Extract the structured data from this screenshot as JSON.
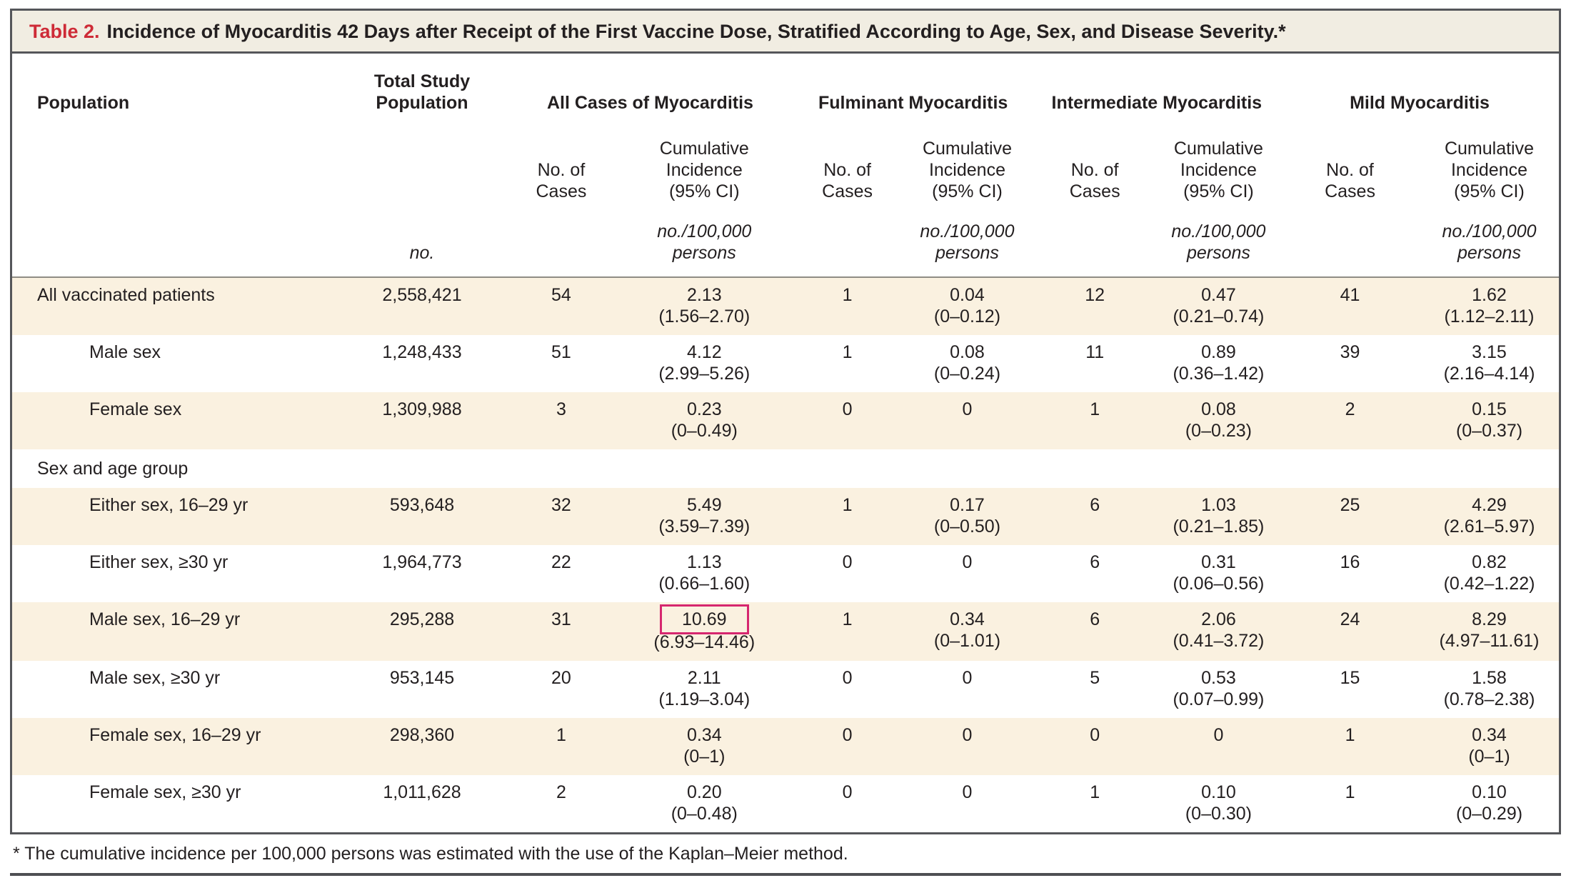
{
  "title": {
    "label": "Table 2.",
    "text": "Incidence of Myocarditis 42 Days after Receipt of the First Vaccine Dose, Stratified According to Age, Sex, and Disease Severity.*"
  },
  "table": {
    "header": {
      "population": "Population",
      "total_study_population": "Total Study Population",
      "groups": [
        "All Cases of Myocarditis",
        "Fulminant Myocarditis",
        "Intermediate Myocarditis",
        "Mild Myocarditis"
      ],
      "no_of_cases": "No. of Cases",
      "cumulative_incidence": "Cumulative Incidence (95% CI)",
      "unit_total": "no.",
      "unit_incidence": "no./100,000 persons"
    },
    "rows": [
      {
        "label": "All vaccinated patients",
        "indent": false,
        "shaded": true,
        "total": "2,558,421",
        "groups": [
          {
            "n": "54",
            "value": "2.13",
            "ci": "(1.56–2.70)"
          },
          {
            "n": "1",
            "value": "0.04",
            "ci": "(0–0.12)"
          },
          {
            "n": "12",
            "value": "0.47",
            "ci": "(0.21–0.74)"
          },
          {
            "n": "41",
            "value": "1.62",
            "ci": "(1.12–2.11)"
          }
        ]
      },
      {
        "label": "Male sex",
        "indent": true,
        "shaded": false,
        "total": "1,248,433",
        "groups": [
          {
            "n": "51",
            "value": "4.12",
            "ci": "(2.99–5.26)"
          },
          {
            "n": "1",
            "value": "0.08",
            "ci": "(0–0.24)"
          },
          {
            "n": "11",
            "value": "0.89",
            "ci": "(0.36–1.42)"
          },
          {
            "n": "39",
            "value": "3.15",
            "ci": "(2.16–4.14)"
          }
        ]
      },
      {
        "label": "Female sex",
        "indent": true,
        "shaded": true,
        "total": "1,309,988",
        "groups": [
          {
            "n": "3",
            "value": "0.23",
            "ci": "(0–0.49)"
          },
          {
            "n": "0",
            "value": "0",
            "ci": ""
          },
          {
            "n": "1",
            "value": "0.08",
            "ci": "(0–0.23)"
          },
          {
            "n": "2",
            "value": "0.15",
            "ci": "(0–0.37)"
          }
        ]
      },
      {
        "label": "Sex and age group",
        "section": true,
        "shaded": false
      },
      {
        "label": "Either sex, 16–29 yr",
        "indent": true,
        "shaded": true,
        "total": "593,648",
        "groups": [
          {
            "n": "32",
            "value": "5.49",
            "ci": "(3.59–7.39)"
          },
          {
            "n": "1",
            "value": "0.17",
            "ci": "(0–0.50)"
          },
          {
            "n": "6",
            "value": "1.03",
            "ci": "(0.21–1.85)"
          },
          {
            "n": "25",
            "value": "4.29",
            "ci": "(2.61–5.97)"
          }
        ]
      },
      {
        "label": "Either sex, ≥30 yr",
        "indent": true,
        "shaded": false,
        "total": "1,964,773",
        "groups": [
          {
            "n": "22",
            "value": "1.13",
            "ci": "(0.66–1.60)"
          },
          {
            "n": "0",
            "value": "0",
            "ci": ""
          },
          {
            "n": "6",
            "value": "0.31",
            "ci": "(0.06–0.56)"
          },
          {
            "n": "16",
            "value": "0.82",
            "ci": "(0.42–1.22)"
          }
        ]
      },
      {
        "label": "Male sex, 16–29 yr",
        "indent": true,
        "shaded": true,
        "total": "295,288",
        "groups": [
          {
            "n": "31",
            "value": "10.69",
            "ci": "(6.93–14.46)",
            "highlight": true
          },
          {
            "n": "1",
            "value": "0.34",
            "ci": "(0–1.01)"
          },
          {
            "n": "6",
            "value": "2.06",
            "ci": "(0.41–3.72)"
          },
          {
            "n": "24",
            "value": "8.29",
            "ci": "(4.97–11.61)"
          }
        ]
      },
      {
        "label": "Male sex, ≥30 yr",
        "indent": true,
        "shaded": false,
        "total": "953,145",
        "groups": [
          {
            "n": "20",
            "value": "2.11",
            "ci": "(1.19–3.04)"
          },
          {
            "n": "0",
            "value": "0",
            "ci": ""
          },
          {
            "n": "5",
            "value": "0.53",
            "ci": "(0.07–0.99)"
          },
          {
            "n": "15",
            "value": "1.58",
            "ci": "(0.78–2.38)"
          }
        ]
      },
      {
        "label": "Female sex, 16–29 yr",
        "indent": true,
        "shaded": true,
        "total": "298,360",
        "groups": [
          {
            "n": "1",
            "value": "0.34",
            "ci": "(0–1)"
          },
          {
            "n": "0",
            "value": "0",
            "ci": ""
          },
          {
            "n": "0",
            "value": "0",
            "ci": ""
          },
          {
            "n": "1",
            "value": "0.34",
            "ci": "(0–1)"
          }
        ]
      },
      {
        "label": "Female sex, ≥30 yr",
        "indent": true,
        "shaded": false,
        "total": "1,011,628",
        "groups": [
          {
            "n": "2",
            "value": "0.20",
            "ci": "(0–0.48)"
          },
          {
            "n": "0",
            "value": "0",
            "ci": ""
          },
          {
            "n": "1",
            "value": "0.10",
            "ci": "(0–0.30)"
          },
          {
            "n": "1",
            "value": "0.10",
            "ci": "(0–0.29)"
          }
        ]
      }
    ]
  },
  "footnote": "* The cumulative incidence per 100,000 persons was estimated with the use of the Kaplan–Meier method.",
  "colors": {
    "accent_red": "#ce2b37",
    "highlight_box": "#d6276f",
    "shaded_row": "#faf1e0",
    "titlebar_bg": "#f1ede2",
    "frame_border": "#55565a"
  }
}
